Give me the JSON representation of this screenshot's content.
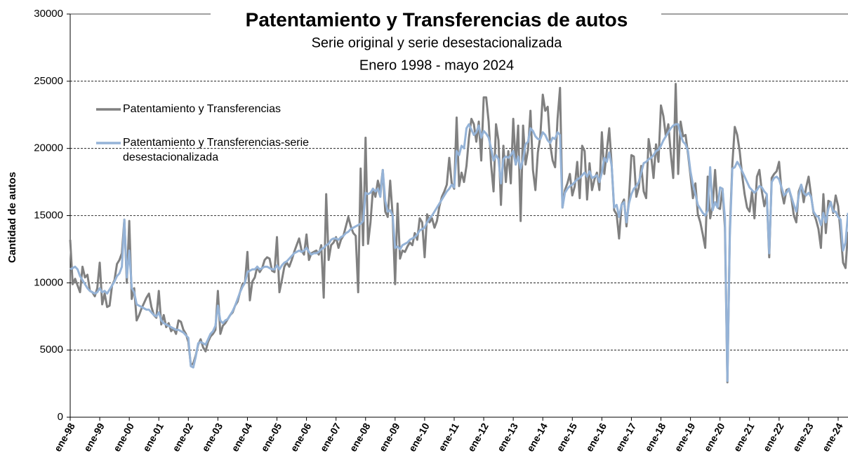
{
  "chart_data": {
    "type": "line",
    "title": "Patentamiento  y Transferencias  de autos",
    "subtitle": [
      "Serie original  y serie desestacionalizada",
      "Enero 1998 - mayo 2024"
    ],
    "y_label": "Cantidad de autos",
    "ylim": [
      0,
      30000
    ],
    "yticks": [
      0,
      5000,
      10000,
      15000,
      20000,
      25000,
      30000
    ],
    "grid": true,
    "categories": [
      "ene-98",
      null,
      null,
      null,
      null,
      null,
      null,
      null,
      null,
      null,
      null,
      null,
      "ene-99",
      null,
      null,
      null,
      null,
      null,
      null,
      null,
      null,
      null,
      null,
      null,
      "ene-00",
      null,
      null,
      null,
      null,
      null,
      null,
      null,
      null,
      null,
      null,
      null,
      "ene-01",
      null,
      null,
      null,
      null,
      null,
      null,
      null,
      null,
      null,
      null,
      null,
      "ene-02",
      null,
      null,
      null,
      null,
      null,
      null,
      null,
      null,
      null,
      null,
      null,
      "ene-03",
      null,
      null,
      null,
      null,
      null,
      null,
      null,
      null,
      null,
      null,
      null,
      "ene-04",
      null,
      null,
      null,
      null,
      null,
      null,
      null,
      null,
      null,
      null,
      null,
      "ene-05",
      null,
      null,
      null,
      null,
      null,
      null,
      null,
      null,
      null,
      null,
      null,
      "ene-06",
      null,
      null,
      null,
      null,
      null,
      null,
      null,
      null,
      null,
      null,
      null,
      "ene-07",
      null,
      null,
      null,
      null,
      null,
      null,
      null,
      null,
      null,
      null,
      null,
      "ene-08",
      null,
      null,
      null,
      null,
      null,
      null,
      null,
      null,
      null,
      null,
      null,
      "ene-09",
      null,
      null,
      null,
      null,
      null,
      null,
      null,
      null,
      null,
      null,
      null,
      "ene-10",
      null,
      null,
      null,
      null,
      null,
      null,
      null,
      null,
      null,
      null,
      null,
      "ene-11",
      null,
      null,
      null,
      null,
      null,
      null,
      null,
      null,
      null,
      null,
      null,
      "ene-12",
      null,
      null,
      null,
      null,
      null,
      null,
      null,
      null,
      null,
      null,
      null,
      "ene-13",
      null,
      null,
      null,
      null,
      null,
      null,
      null,
      null,
      null,
      null,
      null,
      "ene-14",
      null,
      null,
      null,
      null,
      null,
      null,
      null,
      null,
      null,
      null,
      null,
      "ene-15",
      null,
      null,
      null,
      null,
      null,
      null,
      null,
      null,
      null,
      null,
      null,
      "ene-16",
      null,
      null,
      null,
      null,
      null,
      null,
      null,
      null,
      null,
      null,
      null,
      "ene-17",
      null,
      null,
      null,
      null,
      null,
      null,
      null,
      null,
      null,
      null,
      null,
      "ene-18",
      null,
      null,
      null,
      null,
      null,
      null,
      null,
      null,
      null,
      null,
      null,
      "ene-19",
      null,
      null,
      null,
      null,
      null,
      null,
      null,
      null,
      null,
      null,
      null,
      "ene-20",
      null,
      null,
      null,
      null,
      null,
      null,
      null,
      null,
      null,
      null,
      null,
      "ene-21",
      null,
      null,
      null,
      null,
      null,
      null,
      null,
      null,
      null,
      null,
      null,
      "ene-22",
      null,
      null,
      null,
      null,
      null,
      null,
      null,
      null,
      null,
      null,
      null,
      "ene-23",
      null,
      null,
      null,
      null,
      null,
      null,
      null,
      null,
      null,
      null,
      null,
      "ene-24",
      null,
      null,
      null,
      null
    ],
    "series": [
      {
        "name": "Patentamiento y Transferencias",
        "color": "#808080",
        "values": [
          13200,
          9900,
          10300,
          9800,
          9300,
          11200,
          10400,
          10600,
          9400,
          9300,
          9000,
          9600,
          11500,
          8400,
          9200,
          8200,
          8300,
          9800,
          10200,
          11400,
          11700,
          12200,
          14700,
          10000,
          14600,
          8800,
          9600,
          7200,
          7600,
          8100,
          8500,
          8900,
          9200,
          8200,
          7600,
          7400,
          9400,
          6900,
          7600,
          6700,
          7000,
          6400,
          6600,
          6200,
          7200,
          7100,
          6500,
          6200,
          5600,
          3900,
          4000,
          4600,
          5400,
          5800,
          5200,
          4900,
          5600,
          6000,
          6200,
          6500,
          9400,
          6200,
          6800,
          7000,
          7300,
          7600,
          7800,
          8300,
          8600,
          9300,
          9900,
          10000,
          12300,
          8700,
          10100,
          10400,
          11200,
          10800,
          11100,
          11700,
          11900,
          11800,
          10900,
          10800,
          13400,
          9300,
          10200,
          11200,
          11500,
          11200,
          11700,
          12300,
          12800,
          13300,
          12400,
          12100,
          13600,
          11700,
          12200,
          12300,
          12400,
          12100,
          12800,
          8900,
          16600,
          11700,
          12800,
          13000,
          13400,
          12600,
          13200,
          13500,
          14200,
          14900,
          14200,
          13700,
          13500,
          9300,
          18500,
          12800,
          20800,
          12900,
          14500,
          17000,
          16400,
          17600,
          16800,
          18400,
          15300,
          14900,
          17600,
          15000,
          9900,
          15900,
          11800,
          12400,
          12300,
          12700,
          13000,
          12800,
          13700,
          13200,
          14800,
          14500,
          11900,
          15100,
          14500,
          14800,
          14100,
          14600,
          15700,
          16400,
          16800,
          17300,
          19300,
          17400,
          17000,
          22300,
          17200,
          18200,
          17500,
          18700,
          20800,
          22200,
          21800,
          20500,
          22000,
          19100,
          23800,
          23800,
          22000,
          18800,
          16800,
          21800,
          20600,
          15800,
          20200,
          17500,
          19800,
          17400,
          22200,
          18800,
          21700,
          14600,
          21700,
          18800,
          19900,
          22800,
          18400,
          16900,
          19700,
          20900,
          24000,
          22800,
          23100,
          20300,
          19100,
          18600,
          22200,
          24500,
          15600,
          16900,
          17400,
          18100,
          16500,
          17200,
          19000,
          16300,
          20200,
          19800,
          16200,
          18900,
          16900,
          17700,
          18200,
          16900,
          21200,
          18100,
          19800,
          21500,
          18700,
          15400,
          15100,
          13300,
          15800,
          16200,
          14200,
          16200,
          19500,
          19400,
          16400,
          17100,
          18700,
          16800,
          16300,
          20700,
          19500,
          17800,
          20300,
          19000,
          23200,
          22400,
          20900,
          21800,
          19600,
          17800,
          24800,
          18100,
          22000,
          20900,
          21000,
          19600,
          18000,
          16300,
          17400,
          15100,
          14500,
          13600,
          12600,
          17900,
          14800,
          15700,
          18400,
          15600,
          15500,
          17000,
          14100,
          2600,
          14000,
          18800,
          21600,
          21000,
          19800,
          18000,
          16600,
          15600,
          15300,
          16800,
          14800,
          17900,
          18400,
          16800,
          15700,
          16500,
          11900,
          17800,
          18100,
          18300,
          19000,
          16800,
          15900,
          16900,
          17000,
          16300,
          15000,
          14500,
          16800,
          17300,
          16000,
          17100,
          17900,
          16500,
          15200,
          14700,
          14000,
          12600,
          16600,
          13700,
          16100,
          16000,
          15200,
          16500,
          15700,
          13700,
          11500,
          11100,
          13800
        ]
      },
      {
        "name": "Patentamiento y Transferencias-serie desestacionalizada",
        "color": "#95b3d7",
        "values": [
          11000,
          11100,
          11200,
          11000,
          10500,
          10200,
          9900,
          9600,
          9400,
          9300,
          9200,
          9300,
          9600,
          9300,
          9400,
          9200,
          9500,
          9800,
          10100,
          10500,
          10700,
          11200,
          14700,
          10400,
          12400,
          9600,
          9300,
          8400,
          8300,
          8200,
          8100,
          8000,
          8000,
          7800,
          7600,
          7500,
          7800,
          7200,
          7000,
          6900,
          6800,
          6700,
          6600,
          6500,
          6500,
          6400,
          6300,
          6100,
          5900,
          3800,
          3700,
          4500,
          5500,
          5600,
          5500,
          5400,
          5800,
          6200,
          6400,
          6800,
          8300,
          7200,
          7000,
          7200,
          7300,
          7600,
          7900,
          8300,
          8800,
          9300,
          9700,
          10000,
          10800,
          10900,
          11000,
          11000,
          11200,
          11000,
          11100,
          11200,
          11200,
          11100,
          11000,
          11000,
          11300,
          11000,
          11300,
          11500,
          11600,
          11800,
          12000,
          12200,
          12300,
          12400,
          12300,
          12400,
          12600,
          12300,
          12100,
          12200,
          12200,
          12300,
          12500,
          12600,
          12800,
          12900,
          13200,
          13300,
          13300,
          13200,
          13400,
          13500,
          13700,
          13800,
          14000,
          14100,
          14200,
          14300,
          14400,
          14600,
          16700,
          16600,
          16700,
          17000,
          16800,
          17000,
          16400,
          18400,
          16100,
          15300,
          15400,
          15000,
          12600,
          12700,
          12500,
          12800,
          12900,
          13000,
          13200,
          13300,
          13400,
          13600,
          13900,
          14000,
          14100,
          14500,
          14800,
          15000,
          15300,
          15600,
          15900,
          16200,
          16500,
          16800,
          17000,
          17300,
          17100,
          19800,
          19500,
          20200,
          20000,
          21500,
          21800,
          21400,
          21000,
          21200,
          21700,
          20800,
          21300,
          21100,
          20800,
          20000,
          19100,
          19500,
          19200,
          17400,
          19200,
          19400,
          19300,
          19500,
          19800,
          18800,
          19400,
          18500,
          19200,
          20300,
          20500,
          21500,
          21300,
          20900,
          20700,
          20700,
          21200,
          21000,
          20600,
          20400,
          20800,
          20700,
          21200,
          21000,
          15600,
          16700,
          17000,
          17200,
          17300,
          17500,
          17700,
          17800,
          18000,
          18200,
          17900,
          18300,
          17800,
          17900,
          18000,
          17500,
          18200,
          19300,
          19000,
          19700,
          18700,
          15600,
          15800,
          14900,
          15800,
          16000,
          14500,
          15900,
          16600,
          17000,
          17200,
          17500,
          18200,
          18900,
          19000,
          19200,
          19300,
          19500,
          19800,
          19900,
          20200,
          20600,
          20900,
          21200,
          21500,
          21700,
          21800,
          21800,
          21000,
          20500,
          20300,
          19800,
          18300,
          17300,
          16600,
          15800,
          15500,
          15200,
          15000,
          15400,
          18600,
          15400,
          16000,
          15600,
          17100,
          17000,
          14800,
          2700,
          13500,
          18500,
          18600,
          19000,
          18700,
          18300,
          17900,
          17500,
          17100,
          16900,
          16700,
          16900,
          17200,
          17100,
          16800,
          16600,
          12200,
          17500,
          17800,
          17900,
          17700,
          17100,
          16500,
          16700,
          17000,
          16400,
          15800,
          15300,
          16500,
          17300,
          16700,
          16500,
          16700,
          16400,
          15300,
          15000,
          14900,
          14300,
          15200,
          14500,
          15500,
          16000,
          15300,
          15300,
          14900,
          14700,
          12400,
          13000,
          15200
        ]
      }
    ]
  }
}
